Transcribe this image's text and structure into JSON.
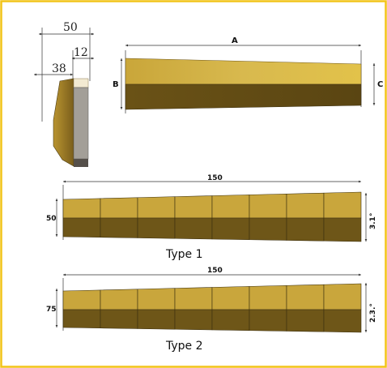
{
  "side_view": {
    "dim_total": "50",
    "dim_right": "12",
    "dim_left": "38"
  },
  "top_block": {
    "label_a": "A",
    "label_b": "B",
    "label_c": "C"
  },
  "type1": {
    "length": "150",
    "height": "50",
    "angle": "3.1°",
    "caption": "Type  1",
    "segments": 8
  },
  "type2": {
    "length": "150",
    "height": "75",
    "angle": "2.3.°",
    "caption": "Type  2",
    "segments": 8
  },
  "colors": {
    "border": "#f2c418",
    "gold_top": "#cfaf45",
    "gold_dark": "#6e5618"
  }
}
